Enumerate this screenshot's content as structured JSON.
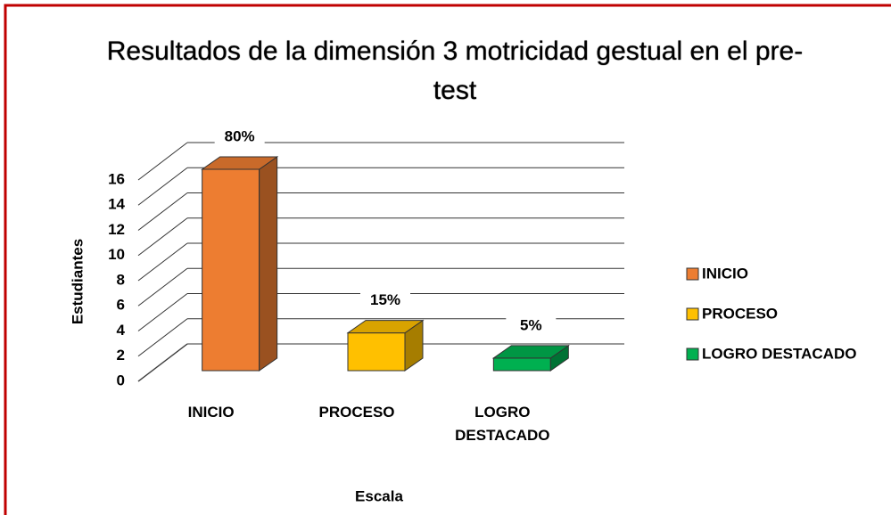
{
  "chart_data": {
    "type": "bar3d",
    "title": "Resultados de la dimensión 3 motricidad gestual en el pre-test",
    "x_label": "Escala",
    "y_label": "Estudiantes",
    "categories": [
      "INICIO",
      "PROCESO",
      "LOGRO DESTACADO"
    ],
    "series": [
      {
        "name": "INICIO",
        "color": "#ED7D31"
      },
      {
        "name": "PROCESO",
        "color": "#FFC000"
      },
      {
        "name": "LOGRO DESTACADO",
        "color": "#00B050"
      }
    ],
    "values": [
      16,
      3,
      1
    ],
    "value_labels": [
      "80%",
      "15%",
      "5%"
    ],
    "ylim": [
      0,
      16
    ],
    "yticks": [
      0,
      2,
      4,
      6,
      8,
      10,
      12,
      14,
      16
    ],
    "grid": true,
    "legend": "right"
  }
}
